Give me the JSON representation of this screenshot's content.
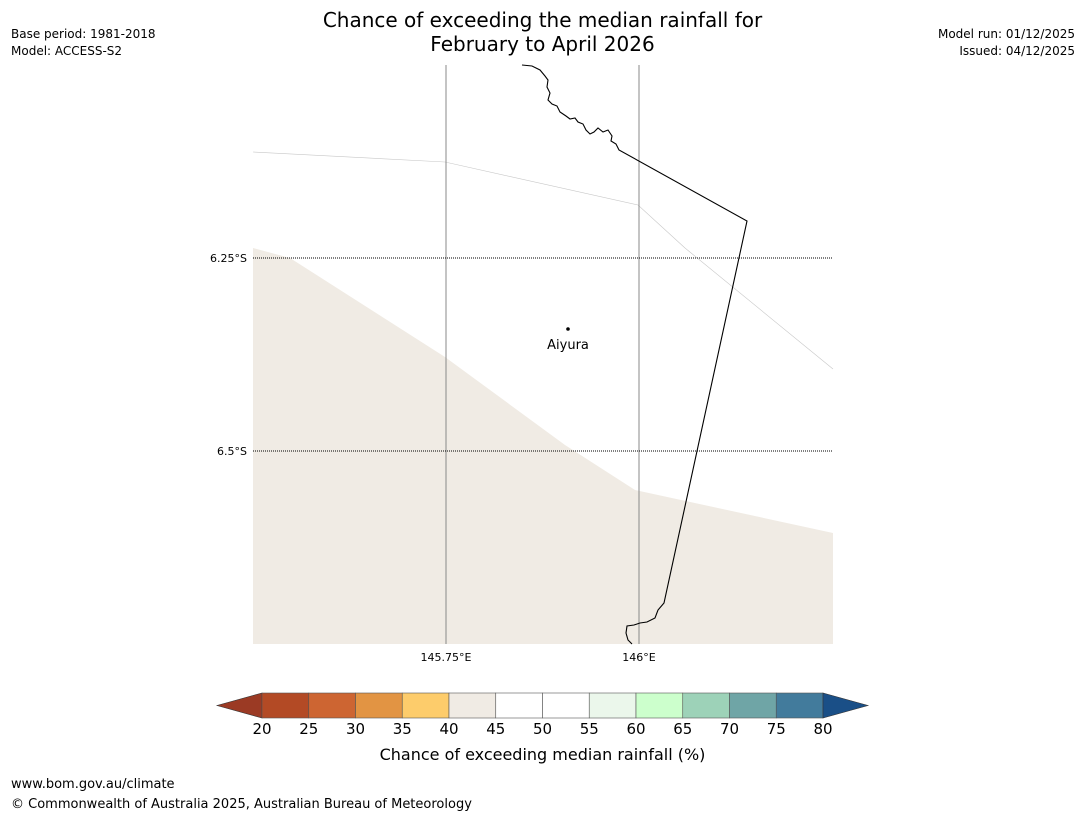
{
  "title": {
    "line1": "Chance of exceeding the median rainfall for",
    "line2": "February to April 2026"
  },
  "meta_left": {
    "base_period": "Base period: 1981-2018",
    "model": "Model: ACCESS-S2"
  },
  "meta_right": {
    "model_run": "Model run: 01/12/2025",
    "issued": "Issued: 04/12/2025"
  },
  "map": {
    "latitude_labels": [
      "6.25°S",
      "6.5°S"
    ],
    "longitude_labels": [
      "145.75°E",
      "146°E"
    ],
    "place": {
      "name": "Aiyura"
    },
    "region_fill_color": "#f0ebe4",
    "coast_color": "#000000",
    "region_category": "40-45"
  },
  "colorbar": {
    "ticks": [
      "20",
      "25",
      "30",
      "35",
      "40",
      "45",
      "50",
      "55",
      "60",
      "65",
      "70",
      "75",
      "80"
    ],
    "colors": [
      "#9b3a24",
      "#b34a25",
      "#cd6532",
      "#e29443",
      "#fdcc6b",
      "#f0ebe4",
      "#ffffff",
      "#ffffff",
      "#ebf7eb",
      "#ccffcc",
      "#9dd2b8",
      "#6fa5a6",
      "#427b9c",
      "#1a4f87"
    ],
    "label": "Chance of exceeding median rainfall (%)"
  },
  "footer": {
    "url": "www.bom.gov.au/climate",
    "copyright": "© Commonwealth of Australia 2025, Australian Bureau of Meteorology"
  }
}
